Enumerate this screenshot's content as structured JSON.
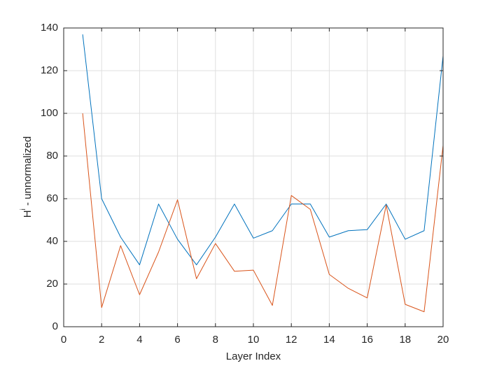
{
  "chart_data": {
    "type": "line",
    "xlabel": "Layer Index",
    "ylabel_parts": [
      "H",
      "i",
      " - unnormalized"
    ],
    "x": [
      1,
      2,
      3,
      4,
      5,
      6,
      7,
      8,
      9,
      10,
      11,
      12,
      13,
      14,
      15,
      16,
      17,
      18,
      19,
      20
    ],
    "series": [
      {
        "color": "#0072bd",
        "values": [
          137,
          60,
          42,
          29,
          57.5,
          41,
          29,
          42,
          57.5,
          41.5,
          45,
          57.5,
          57.5,
          42,
          45,
          45.5,
          57.5,
          41,
          45,
          127
        ]
      },
      {
        "color": "#d95319",
        "values": [
          100,
          9,
          38,
          15,
          35,
          59.5,
          22.5,
          39,
          26,
          26.5,
          10,
          61.5,
          55,
          24.5,
          18,
          13.5,
          57,
          10.5,
          7,
          85
        ]
      }
    ],
    "xlim": [
      0,
      20
    ],
    "xticks": [
      0,
      2,
      4,
      6,
      8,
      10,
      12,
      14,
      16,
      18,
      20
    ],
    "ylim": [
      0,
      140
    ],
    "yticks": [
      0,
      20,
      40,
      60,
      80,
      100,
      120,
      140
    ],
    "grid": true
  }
}
